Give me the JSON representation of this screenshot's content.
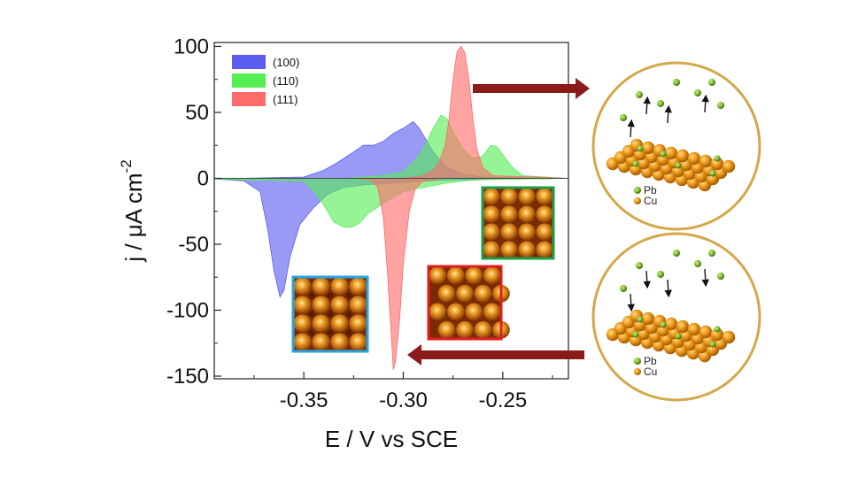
{
  "chart_data": {
    "type": "area",
    "title": "",
    "xlabel": "E / V vs SCE",
    "ylabel_main": "j / μA cm",
    "ylabel_exp": "-2",
    "xlim": [
      -0.395,
      -0.217
    ],
    "ylim": [
      -152,
      103
    ],
    "x_ticks": [
      -0.35,
      -0.3,
      -0.25
    ],
    "x_tick_labels": [
      "-0.35",
      "-0.30",
      "-0.25"
    ],
    "y_ticks": [
      100,
      50,
      0,
      -50,
      -100,
      -150
    ],
    "y_tick_labels": [
      "100",
      "50",
      "0",
      "-50",
      "-100",
      "-150"
    ],
    "legend_position": "top-left",
    "series": [
      {
        "name": "(100)",
        "color": "#5b5bf0",
        "upper": [
          [
            -0.395,
            -0.5
          ],
          [
            -0.35,
            1
          ],
          [
            -0.34,
            6
          ],
          [
            -0.333,
            12
          ],
          [
            -0.325,
            20
          ],
          [
            -0.32,
            25
          ],
          [
            -0.315,
            25
          ],
          [
            -0.31,
            28
          ],
          [
            -0.305,
            34
          ],
          [
            -0.3,
            38
          ],
          [
            -0.295,
            43
          ],
          [
            -0.292,
            38
          ],
          [
            -0.285,
            20
          ],
          [
            -0.278,
            8
          ],
          [
            -0.27,
            3
          ],
          [
            -0.26,
            1
          ],
          [
            -0.25,
            0.5
          ],
          [
            -0.217,
            0
          ]
        ],
        "lower": [
          [
            -0.395,
            -0.5
          ],
          [
            -0.38,
            -2
          ],
          [
            -0.372,
            -10
          ],
          [
            -0.368,
            -40
          ],
          [
            -0.365,
            -70
          ],
          [
            -0.362,
            -90
          ],
          [
            -0.36,
            -85
          ],
          [
            -0.357,
            -60
          ],
          [
            -0.352,
            -35
          ],
          [
            -0.345,
            -22
          ],
          [
            -0.338,
            -12
          ],
          [
            -0.33,
            -7
          ],
          [
            -0.32,
            -5
          ],
          [
            -0.31,
            -4
          ],
          [
            -0.3,
            -3
          ],
          [
            -0.28,
            -1.5
          ],
          [
            -0.26,
            -0.8
          ],
          [
            -0.217,
            0
          ]
        ]
      },
      {
        "name": "(110)",
        "color": "#55ee55",
        "upper": [
          [
            -0.395,
            -0.5
          ],
          [
            -0.33,
            0
          ],
          [
            -0.31,
            2
          ],
          [
            -0.3,
            5
          ],
          [
            -0.295,
            12
          ],
          [
            -0.29,
            22
          ],
          [
            -0.285,
            38
          ],
          [
            -0.281,
            48
          ],
          [
            -0.278,
            45
          ],
          [
            -0.275,
            35
          ],
          [
            -0.27,
            22
          ],
          [
            -0.265,
            15
          ],
          [
            -0.26,
            17
          ],
          [
            -0.256,
            25
          ],
          [
            -0.253,
            24
          ],
          [
            -0.25,
            18
          ],
          [
            -0.245,
            8
          ],
          [
            -0.24,
            2
          ],
          [
            -0.217,
            0
          ]
        ],
        "lower": [
          [
            -0.395,
            -0.5
          ],
          [
            -0.35,
            -2
          ],
          [
            -0.345,
            -10
          ],
          [
            -0.34,
            -20
          ],
          [
            -0.335,
            -33
          ],
          [
            -0.33,
            -37
          ],
          [
            -0.326,
            -37
          ],
          [
            -0.322,
            -34
          ],
          [
            -0.318,
            -27
          ],
          [
            -0.313,
            -22
          ],
          [
            -0.308,
            -17
          ],
          [
            -0.3,
            -10
          ],
          [
            -0.29,
            -7
          ],
          [
            -0.28,
            -4
          ],
          [
            -0.27,
            -2
          ],
          [
            -0.26,
            -1
          ],
          [
            -0.217,
            0
          ]
        ]
      },
      {
        "name": "(111)",
        "color": "#ff6b6b",
        "upper": [
          [
            -0.395,
            0
          ],
          [
            -0.3,
            0
          ],
          [
            -0.29,
            2
          ],
          [
            -0.285,
            6
          ],
          [
            -0.282,
            12
          ],
          [
            -0.279,
            25
          ],
          [
            -0.277,
            45
          ],
          [
            -0.275,
            75
          ],
          [
            -0.273,
            96
          ],
          [
            -0.271,
            100
          ],
          [
            -0.269,
            95
          ],
          [
            -0.267,
            75
          ],
          [
            -0.265,
            45
          ],
          [
            -0.263,
            22
          ],
          [
            -0.26,
            8
          ],
          [
            -0.255,
            2
          ],
          [
            -0.217,
            0
          ]
        ],
        "lower": [
          [
            -0.395,
            0
          ],
          [
            -0.325,
            0
          ],
          [
            -0.317,
            -1
          ],
          [
            -0.313,
            -6
          ],
          [
            -0.31,
            -30
          ],
          [
            -0.308,
            -70
          ],
          [
            -0.306,
            -120
          ],
          [
            -0.305,
            -145
          ],
          [
            -0.304,
            -140
          ],
          [
            -0.302,
            -110
          ],
          [
            -0.3,
            -65
          ],
          [
            -0.297,
            -25
          ],
          [
            -0.294,
            -8
          ],
          [
            -0.29,
            -2
          ],
          [
            -0.28,
            0
          ],
          [
            -0.217,
            0
          ]
        ]
      }
    ]
  },
  "insets": {
    "species": [
      "Pb",
      "Cu"
    ],
    "colors": {
      "pb": "#7cb82f",
      "cu": "#e8920a",
      "frame": "#d4a74a",
      "arrow": "#8b1a1a"
    },
    "crystal_frames": {
      "c100": "#29a3e0",
      "c111": "#e01e1e",
      "c110": "#1e9e4a"
    }
  }
}
